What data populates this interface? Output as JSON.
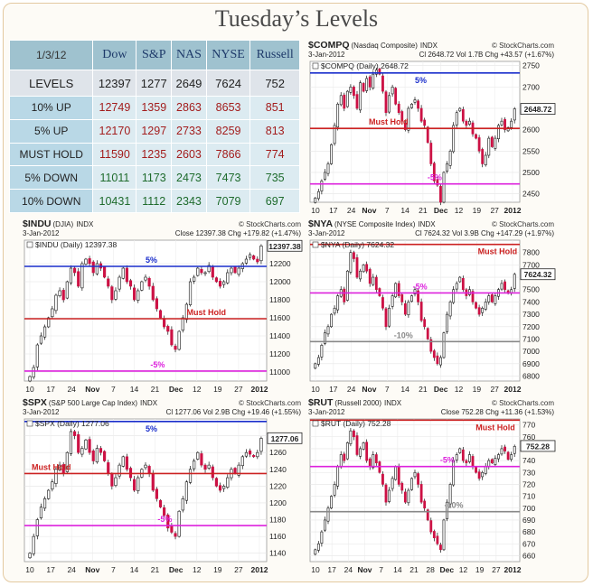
{
  "page": {
    "title": "Tuesday’s Levels"
  },
  "levels_table": {
    "date": "1/3/12",
    "columns": [
      "Dow",
      "S&P",
      "NAS",
      "NYSE",
      "Russell"
    ],
    "rows": [
      {
        "label": "LEVELS",
        "values": [
          "12397",
          "1277",
          "2649",
          "7624",
          "752"
        ]
      },
      {
        "label": "10% UP",
        "values": [
          "12749",
          "1359",
          "2863",
          "8653",
          "851"
        ]
      },
      {
        "label": "5% UP",
        "values": [
          "12170",
          "1297",
          "2733",
          "8259",
          "813"
        ]
      },
      {
        "label": "MUST HOLD",
        "values": [
          "11590",
          "1235",
          "2603",
          "7866",
          "774"
        ]
      },
      {
        "label": "5% DOWN",
        "values": [
          "11011",
          "1173",
          "2473",
          "7473",
          "735"
        ]
      },
      {
        "label": "10% DOWN",
        "values": [
          "10431",
          "1112",
          "2343",
          "7079",
          "697"
        ]
      }
    ]
  },
  "colors": {
    "red": "#cc2222",
    "blue": "#1a2ecc",
    "magenta": "#dd22dd",
    "gray": "#888888",
    "candle_up": "#ffffff",
    "candle_down": "#cc1144"
  },
  "chart_data": [
    {
      "type": "candlestick",
      "symbol": "$COMPQ",
      "name": "(Nasdaq Composite)",
      "index_label": "INDX",
      "source": "© StockCharts.com",
      "date": "3-Jan-2012",
      "stats": "Cl 2648.72  Vol 1.7B  Chg +43.57 (+1.67%)",
      "legend": "$COMPQ (Daily) 2648.72",
      "last_label": "2648.72",
      "last": 2648.72,
      "ylim": [
        2430,
        2760
      ],
      "yticks": [
        2450,
        2500,
        2550,
        2600,
        2650,
        2700,
        2750
      ],
      "xticks": [
        "10",
        "17",
        "24",
        "Nov",
        "7",
        "14",
        "21",
        "Dec",
        "12",
        "19",
        "27",
        "2012"
      ],
      "levels": [
        {
          "value": 2733,
          "color": "blue",
          "label": "5%",
          "label_pos": 0.5
        },
        {
          "value": 2603,
          "color": "red",
          "label": "Must Hold",
          "label_pos": 0.28
        },
        {
          "value": 2473,
          "color": "magenta",
          "label": "-5%",
          "label_pos": 0.56
        }
      ],
      "closes": [
        2440,
        2455,
        2480,
        2500,
        2520,
        2565,
        2610,
        2660,
        2680,
        2650,
        2690,
        2700,
        2680,
        2650,
        2710,
        2690,
        2720,
        2700,
        2730,
        2740,
        2730,
        2690,
        2640,
        2680,
        2700,
        2660,
        2640,
        2620,
        2600,
        2650,
        2660,
        2670,
        2650,
        2620,
        2610,
        2570,
        2520,
        2480,
        2470,
        2430,
        2500,
        2520,
        2550,
        2610,
        2640,
        2650,
        2620,
        2610,
        2620,
        2590,
        2580,
        2550,
        2520,
        2540,
        2580,
        2560,
        2580,
        2610,
        2620,
        2600,
        2605,
        2620,
        2649
      ]
    },
    {
      "type": "candlestick",
      "symbol": "$INDU",
      "name": "(DJIA)",
      "index_label": "INDX",
      "source": "© StockCharts.com",
      "date": "3-Jan-2012",
      "stats": "Close 12397.38  Chg +179.82 (+1.47%)",
      "legend": "$INDU (Daily) 12397.38",
      "last_label": "12397.38",
      "last": 12397.38,
      "ylim": [
        10900,
        12460
      ],
      "yticks": [
        11000,
        11200,
        11400,
        11600,
        11800,
        12000,
        12200
      ],
      "xticks": [
        "10",
        "17",
        "24",
        "Nov",
        "7",
        "14",
        "21",
        "Dec",
        "12",
        "19",
        "27",
        "2012"
      ],
      "levels": [
        {
          "value": 12170,
          "color": "blue",
          "label": "5%",
          "label_pos": 0.5
        },
        {
          "value": 11590,
          "color": "red",
          "label": "Must Hold",
          "label_pos": 0.67
        },
        {
          "value": 11011,
          "color": "magenta",
          "label": "-5%",
          "label_pos": 0.52
        }
      ],
      "closes": [
        10950,
        11050,
        11300,
        11400,
        11500,
        11600,
        11700,
        11850,
        11900,
        11800,
        12000,
        12150,
        12100,
        11950,
        12200,
        12250,
        12200,
        12100,
        12200,
        12150,
        12050,
        11950,
        11800,
        11900,
        12050,
        12150,
        12000,
        11950,
        11800,
        11900,
        12000,
        12050,
        11950,
        11800,
        11700,
        11600,
        11500,
        11450,
        11300,
        11250,
        11450,
        11600,
        11750,
        12000,
        12050,
        12150,
        12100,
        12100,
        12180,
        12050,
        12000,
        11950,
        12000,
        12100,
        12150,
        12100,
        12150,
        12200,
        12250,
        12300,
        12250,
        12220,
        12397
      ]
    },
    {
      "type": "candlestick",
      "symbol": "$NYA",
      "name": "(NYSE Composite Index)",
      "index_label": "INDX",
      "source": "© StockCharts.com",
      "date": "3-Jan-2012",
      "stats": "Cl 7624.32  Vol 3.9B  Chg +147.29 (+1.97%)",
      "legend": "$NYA (Daily) 7624.32",
      "last_label": "7624.32",
      "last": 7624.32,
      "ylim": [
        6760,
        7900
      ],
      "yticks": [
        6800,
        6900,
        7000,
        7100,
        7200,
        7300,
        7400,
        7500,
        7600,
        7700,
        7800
      ],
      "xticks": [
        "10",
        "17",
        "24",
        "Nov",
        "7",
        "14",
        "21",
        "Dec",
        "12",
        "19",
        "27",
        "2012"
      ],
      "levels": [
        {
          "value": 7866,
          "color": "red",
          "label": "Must Hold",
          "label_pos": 0.8
        },
        {
          "value": 7473,
          "color": "magenta",
          "label": "-5%",
          "label_pos": 0.49
        },
        {
          "value": 7079,
          "color": "gray",
          "label": "-10%",
          "label_pos": 0.4
        }
      ],
      "closes": [
        6900,
        6950,
        7050,
        7150,
        7200,
        7300,
        7350,
        7450,
        7500,
        7400,
        7650,
        7800,
        7750,
        7600,
        7650,
        7700,
        7650,
        7550,
        7600,
        7500,
        7450,
        7350,
        7200,
        7350,
        7450,
        7550,
        7450,
        7400,
        7300,
        7400,
        7450,
        7500,
        7400,
        7250,
        7200,
        7100,
        7000,
        6950,
        6900,
        6950,
        7150,
        7300,
        7400,
        7500,
        7550,
        7600,
        7500,
        7450,
        7500,
        7400,
        7350,
        7300,
        7350,
        7400,
        7450,
        7400,
        7450,
        7500,
        7550,
        7500,
        7470,
        7500,
        7624
      ]
    },
    {
      "type": "candlestick",
      "symbol": "$SPX",
      "name": "(S&P 500 Large Cap Index)",
      "index_label": "INDX",
      "source": "© StockCharts.com",
      "date": "3-Jan-2012",
      "stats": "Cl 1277.06  Vol 2.9B  Chg +19.46 (+1.55%)",
      "legend": "$SPX (Daily) 1277.06",
      "last_label": "1277.06",
      "last": 1277.06,
      "ylim": [
        1130,
        1300
      ],
      "yticks": [
        1140,
        1160,
        1180,
        1200,
        1220,
        1240,
        1260,
        1280
      ],
      "xticks": [
        "10",
        "17",
        "24",
        "Nov",
        "7",
        "14",
        "21",
        "Dec",
        "12",
        "19",
        "27",
        "2012"
      ],
      "levels": [
        {
          "value": 1297,
          "color": "blue",
          "label": "5%",
          "label_pos": 0.5
        },
        {
          "value": 1235,
          "color": "red",
          "label": "Must Hold",
          "label_pos": 0.03
        },
        {
          "value": 1173,
          "color": "magenta",
          "label": "-5%",
          "label_pos": 0.55
        }
      ],
      "closes": [
        1140,
        1160,
        1180,
        1195,
        1205,
        1215,
        1225,
        1240,
        1245,
        1235,
        1260,
        1285,
        1280,
        1260,
        1265,
        1275,
        1260,
        1250,
        1265,
        1260,
        1250,
        1235,
        1220,
        1230,
        1245,
        1255,
        1240,
        1230,
        1215,
        1230,
        1240,
        1245,
        1235,
        1215,
        1205,
        1195,
        1185,
        1170,
        1165,
        1160,
        1190,
        1205,
        1225,
        1240,
        1250,
        1260,
        1245,
        1240,
        1245,
        1230,
        1220,
        1215,
        1220,
        1230,
        1240,
        1235,
        1245,
        1255,
        1260,
        1258,
        1255,
        1260,
        1277
      ]
    },
    {
      "type": "candlestick",
      "symbol": "$RUT",
      "name": "(Russell 2000)",
      "index_label": "INDX",
      "source": "© StockCharts.com",
      "date": "3-Jan-2012",
      "stats": "Close 752.28  Chg +11.36 (+1.53%)",
      "legend": "$RUT (Daily) 752.28",
      "last_label": "752.28",
      "last": 752.28,
      "ylim": [
        655,
        775
      ],
      "yticks": [
        660,
        670,
        680,
        690,
        700,
        710,
        720,
        730,
        740,
        750,
        760,
        770
      ],
      "xticks": [
        "10",
        "17",
        "24",
        "Nov",
        "7",
        "14",
        "21",
        "28",
        "Dec",
        "12",
        "19",
        "27",
        "2012"
      ],
      "levels": [
        {
          "value": 774,
          "color": "red",
          "label": "Must Hold",
          "label_pos": 0.79
        },
        {
          "value": 735,
          "color": "magenta",
          "label": "-5%",
          "label_pos": 0.62
        },
        {
          "value": 697,
          "color": "gray",
          "label": "-10%",
          "label_pos": 0.64
        }
      ],
      "closes": [
        665,
        670,
        680,
        690,
        700,
        710,
        720,
        735,
        745,
        740,
        755,
        765,
        760,
        745,
        750,
        755,
        740,
        735,
        745,
        738,
        730,
        720,
        705,
        715,
        725,
        735,
        720,
        715,
        705,
        715,
        725,
        730,
        720,
        705,
        700,
        690,
        680,
        675,
        670,
        665,
        690,
        705,
        720,
        740,
        745,
        750,
        740,
        738,
        745,
        735,
        730,
        725,
        730,
        735,
        740,
        738,
        742,
        745,
        750,
        748,
        741,
        745,
        752
      ]
    }
  ]
}
